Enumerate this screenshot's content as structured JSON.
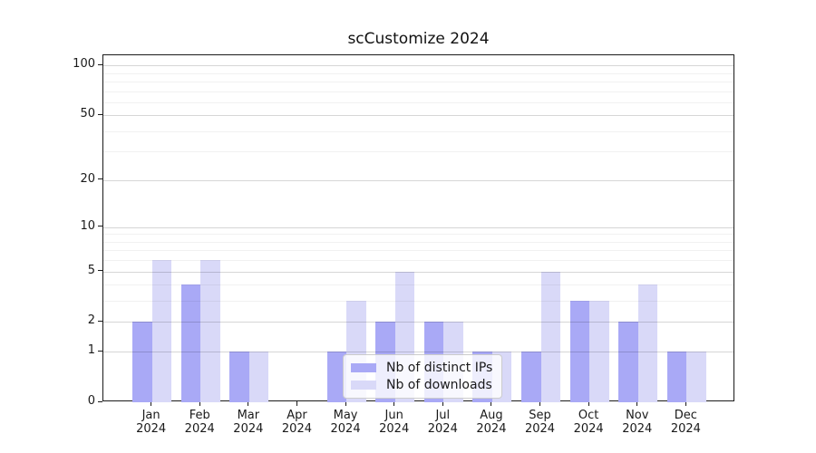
{
  "title": "scCustomize 2024",
  "chart_data": {
    "type": "bar",
    "title": "scCustomize 2024",
    "year_label": "2024",
    "months": [
      "Jan",
      "Feb",
      "Mar",
      "Apr",
      "May",
      "Jun",
      "Jul",
      "Aug",
      "Sep",
      "Oct",
      "Nov",
      "Dec"
    ],
    "series": [
      {
        "name": "Nb of distinct IPs",
        "color": "#a9a9f6",
        "values": [
          2,
          4,
          1,
          0,
          1,
          2,
          2,
          1,
          1,
          3,
          2,
          1
        ]
      },
      {
        "name": "Nb of downloads",
        "color": "#d9d9f8",
        "values": [
          6,
          6,
          1,
          0,
          3,
          5,
          2,
          1,
          5,
          3,
          4,
          1
        ]
      }
    ],
    "yscale": "log1p",
    "ylim": [
      0,
      115
    ],
    "y_major_ticks": [
      0,
      1,
      2,
      5,
      10,
      20,
      50,
      100
    ],
    "y_minor_ticks": [
      3,
      4,
      6,
      7,
      8,
      9,
      30,
      40,
      60,
      70,
      80,
      90
    ],
    "xlabel": "",
    "ylabel": "",
    "grid": "horizontal-on",
    "legend_position": "lower-center-inside"
  }
}
